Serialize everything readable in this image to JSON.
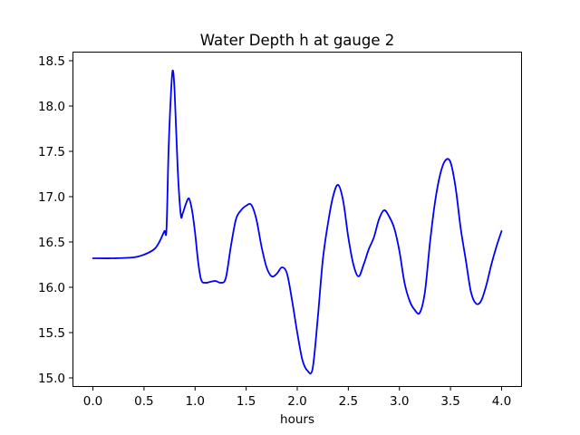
{
  "chart_data": {
    "type": "line",
    "title": "Water Depth h at gauge 2",
    "xlabel": "hours",
    "ylabel": "",
    "xlim": [
      -0.2,
      4.2
    ],
    "ylim": [
      14.9,
      18.6
    ],
    "xticks": [
      0.0,
      0.5,
      1.0,
      1.5,
      2.0,
      2.5,
      3.0,
      3.5,
      4.0
    ],
    "xtick_labels": [
      "0.0",
      "0.5",
      "1.0",
      "1.5",
      "2.0",
      "2.5",
      "3.0",
      "3.5",
      "4.0"
    ],
    "yticks": [
      15.0,
      15.5,
      16.0,
      16.5,
      17.0,
      17.5,
      18.0,
      18.5
    ],
    "ytick_labels": [
      "15.0",
      "15.5",
      "16.0",
      "16.5",
      "17.0",
      "17.5",
      "18.0",
      "18.5"
    ],
    "grid": false,
    "series": [
      {
        "color": "#0000ff",
        "x": [
          0.0,
          0.2,
          0.4,
          0.5,
          0.6,
          0.65,
          0.7,
          0.72,
          0.74,
          0.76,
          0.78,
          0.8,
          0.83,
          0.86,
          0.88,
          0.91,
          0.94,
          0.97,
          1.0,
          1.03,
          1.06,
          1.1,
          1.15,
          1.2,
          1.25,
          1.3,
          1.35,
          1.4,
          1.45,
          1.5,
          1.55,
          1.6,
          1.65,
          1.7,
          1.75,
          1.8,
          1.85,
          1.9,
          1.95,
          2.0,
          2.05,
          2.1,
          2.15,
          2.2,
          2.25,
          2.3,
          2.35,
          2.4,
          2.45,
          2.5,
          2.55,
          2.6,
          2.65,
          2.7,
          2.75,
          2.8,
          2.85,
          2.9,
          2.95,
          3.0,
          3.05,
          3.1,
          3.15,
          3.2,
          3.25,
          3.3,
          3.35,
          3.4,
          3.45,
          3.5,
          3.55,
          3.6,
          3.65,
          3.7,
          3.75,
          3.8,
          3.85,
          3.9,
          3.95,
          4.0
        ],
        "y": [
          16.32,
          16.32,
          16.33,
          16.36,
          16.42,
          16.5,
          16.62,
          16.64,
          17.5,
          18.05,
          18.39,
          18.15,
          17.3,
          16.8,
          16.82,
          16.92,
          16.98,
          16.85,
          16.6,
          16.28,
          16.08,
          16.05,
          16.06,
          16.07,
          16.05,
          16.1,
          16.45,
          16.75,
          16.85,
          16.9,
          16.91,
          16.75,
          16.45,
          16.22,
          16.12,
          16.15,
          16.22,
          16.15,
          15.85,
          15.5,
          15.2,
          15.08,
          15.1,
          15.65,
          16.3,
          16.7,
          17.0,
          17.13,
          16.95,
          16.55,
          16.25,
          16.12,
          16.25,
          16.42,
          16.55,
          16.75,
          16.85,
          16.78,
          16.65,
          16.4,
          16.05,
          15.85,
          15.75,
          15.72,
          15.95,
          16.5,
          16.95,
          17.25,
          17.4,
          17.38,
          17.1,
          16.65,
          16.3,
          15.95,
          15.82,
          15.85,
          16.02,
          16.25,
          16.45,
          16.62
        ]
      }
    ]
  }
}
